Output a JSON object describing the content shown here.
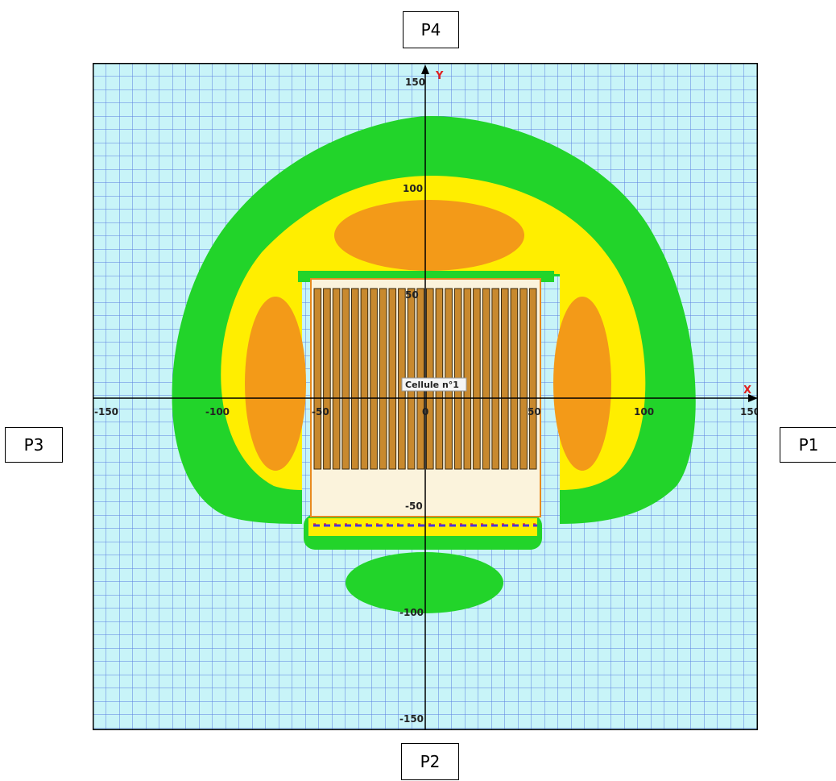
{
  "labels": {
    "p1": "P1",
    "p2": "P2",
    "p3": "P3",
    "p4": "P4"
  },
  "axes": {
    "x_name": "X",
    "y_name": "Y",
    "x_ticks": [
      "-150",
      "-100",
      "-50",
      "0",
      "50",
      "100",
      "150"
    ],
    "y_ticks": [
      "150",
      "100",
      "50",
      "-50",
      "-100",
      "-150"
    ]
  },
  "cell_label": "Cellule n°1",
  "colors": {
    "background": "#c8f4f8",
    "grid": "#5a7ee0",
    "green_zone": "#22d42a",
    "yellow_zone": "#ffee00",
    "orange_zone": "#f39a18",
    "cell_fill": "#fbf3dc",
    "rack": "#c8892e",
    "axis_name": "#e02020"
  }
}
